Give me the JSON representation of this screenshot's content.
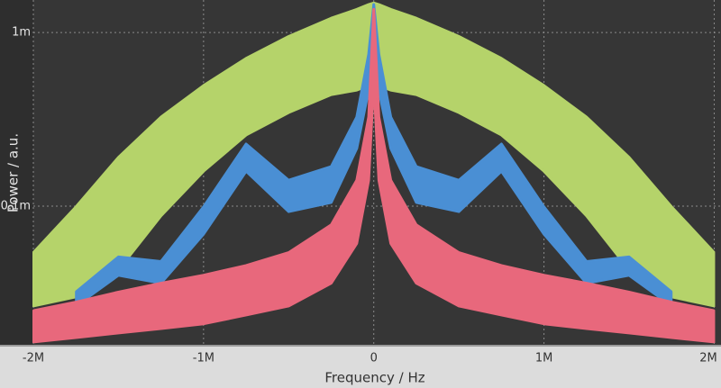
{
  "chart_data": {
    "type": "band",
    "log_y": true,
    "grid": true,
    "xlabel": "Frequency / Hz",
    "ylabel": "Power / a.u.",
    "xlim": [
      -2000000,
      2040000
    ],
    "ylim": [
      1.59e-05,
      0.00154
    ],
    "xticks": [
      {
        "value": -2000000,
        "label": "-2M"
      },
      {
        "value": -1000000,
        "label": "-1M"
      },
      0,
      {
        "value": 1000000,
        "label": "1M"
      },
      {
        "value": 2000000,
        "label": "2M"
      }
    ],
    "yticks": [
      {
        "value": 0.0001,
        "label": "0.1m"
      },
      {
        "value": 0.001,
        "label": "1m"
      }
    ],
    "x": [
      -2000000,
      -1750000,
      -1500000,
      -1250000,
      -1000000,
      -750000,
      -500000,
      -250000,
      -100000,
      -30000,
      0,
      30000,
      100000,
      250000,
      500000,
      750000,
      1000000,
      1250000,
      1500000,
      1750000,
      2000000
    ],
    "series": [
      {
        "color": "#b5d36a",
        "values": [
          5.4e-05,
          9.9e-05,
          0.000191,
          0.000326,
          0.000495,
          0.00071,
          0.00095,
          0.00121,
          0.00136,
          0.00145,
          0.00148,
          0.00145,
          0.00136,
          0.00121,
          0.00095,
          0.00071,
          0.000495,
          0.000326,
          0.000191,
          9.9e-05,
          5.4e-05
        ],
        "lower": [
          2.66e-05,
          3e-05,
          4.3e-05,
          8.8e-05,
          0.000159,
          0.000257,
          0.000346,
          0.000439,
          0.000466,
          0.000495,
          0.000495,
          0.000495,
          0.000466,
          0.000439,
          0.000346,
          0.000257,
          0.000159,
          8.8e-05,
          4.3e-05,
          3e-05,
          2.66e-05
        ]
      },
      {
        "color": "#4a8fd4",
        "values": [
          null,
          3.2e-05,
          5.1e-05,
          4.8e-05,
          9.9e-05,
          0.000228,
          0.000141,
          0.000169,
          0.000326,
          0.00075,
          0.00145,
          0.00075,
          0.000326,
          0.000169,
          0.000141,
          0.000228,
          9.9e-05,
          4.8e-05,
          5.1e-05,
          3.2e-05,
          null
        ],
        "lower": [
          null,
          2.66e-05,
          4e-05,
          3.6e-05,
          6.9e-05,
          0.000159,
          9.3e-05,
          0.000105,
          0.000215,
          0.000466,
          0.00095,
          0.000466,
          0.000215,
          0.000105,
          9.3e-05,
          0.000159,
          6.9e-05,
          3.6e-05,
          4e-05,
          2.66e-05,
          null
        ]
      },
      {
        "color": "#e8687c",
        "values": [
          2.5e-05,
          2.8e-05,
          3.2e-05,
          3.6e-05,
          4e-05,
          4.55e-05,
          5.4e-05,
          7.8e-05,
          0.000141,
          0.000326,
          0.00136,
          0.000326,
          0.000141,
          7.8e-05,
          5.4e-05,
          4.55e-05,
          4e-05,
          3.6e-05,
          3.2e-05,
          2.8e-05,
          2.5e-05
        ],
        "lower": [
          1.65e-05,
          1.75e-05,
          1.86e-05,
          1.97e-05,
          2.1e-05,
          2.36e-05,
          2.66e-05,
          3.6e-05,
          6.1e-05,
          0.000141,
          0.000525,
          0.000141,
          6.1e-05,
          3.6e-05,
          2.66e-05,
          2.36e-05,
          2.1e-05,
          1.97e-05,
          1.86e-05,
          1.75e-05,
          1.65e-05
        ]
      }
    ]
  }
}
